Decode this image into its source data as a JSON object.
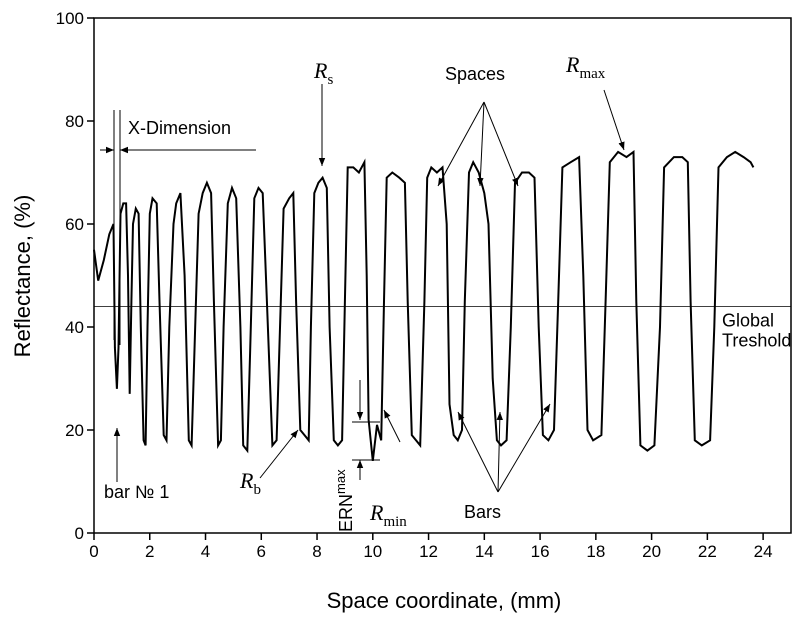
{
  "chart_data": {
    "type": "line",
    "x_label": "Space coordinate, (mm)",
    "y_label": "Reflectance, (%)",
    "xlim": [
      0,
      25
    ],
    "ylim": [
      0,
      100
    ],
    "xticks": [
      0,
      2,
      4,
      6,
      8,
      10,
      12,
      14,
      16,
      18,
      20,
      22,
      24
    ],
    "yticks": [
      0,
      20,
      40,
      60,
      80,
      100
    ],
    "color": "#000000",
    "threshold": {
      "value": 44,
      "label_lines": [
        "Global",
        "Treshold"
      ]
    },
    "annotations": [
      {
        "text": "R",
        "sub": "s"
      },
      {
        "text": "Spaces"
      },
      {
        "text": "R",
        "sub": "max"
      },
      {
        "text": "X-Dimension"
      },
      {
        "text": "bar № 1"
      },
      {
        "text": "R",
        "sub": "b"
      },
      {
        "text": "ERN",
        "sub": "max"
      },
      {
        "text": "R",
        "sub": "min"
      },
      {
        "text": "Bars"
      }
    ],
    "x": [
      0,
      0.15,
      0.35,
      0.55,
      0.7,
      0.75,
      0.82,
      0.88,
      0.95,
      1.05,
      1.15,
      1.22,
      1.28,
      1.34,
      1.4,
      1.5,
      1.6,
      1.68,
      1.78,
      1.85,
      1.92,
      2.0,
      2.1,
      2.25,
      2.35,
      2.5,
      2.6,
      2.7,
      2.85,
      2.95,
      3.1,
      3.25,
      3.4,
      3.5,
      3.6,
      3.75,
      3.9,
      4.05,
      4.2,
      4.3,
      4.45,
      4.55,
      4.65,
      4.8,
      4.95,
      5.1,
      5.25,
      5.35,
      5.5,
      5.6,
      5.75,
      5.9,
      6.05,
      6.2,
      6.4,
      6.55,
      6.7,
      6.8,
      7.0,
      7.15,
      7.25,
      7.4,
      7.55,
      7.7,
      7.78,
      7.9,
      8.05,
      8.2,
      8.35,
      8.45,
      8.6,
      8.75,
      8.9,
      9.0,
      9.1,
      9.3,
      9.5,
      9.7,
      9.78,
      9.85,
      10.0,
      10.15,
      10.3,
      10.4,
      10.5,
      10.7,
      10.95,
      11.15,
      11.25,
      11.4,
      11.55,
      11.7,
      11.85,
      11.95,
      12.1,
      12.3,
      12.5,
      12.65,
      12.75,
      12.9,
      13.05,
      13.2,
      13.3,
      13.45,
      13.6,
      13.8,
      14.0,
      14.15,
      14.3,
      14.45,
      14.6,
      14.8,
      14.95,
      15.1,
      15.35,
      15.6,
      15.8,
      15.95,
      16.1,
      16.3,
      16.5,
      16.65,
      16.8,
      17.1,
      17.4,
      17.55,
      17.7,
      17.9,
      18.2,
      18.35,
      18.5,
      18.8,
      19.1,
      19.35,
      19.45,
      19.6,
      19.85,
      20.1,
      20.3,
      20.45,
      20.8,
      21.1,
      21.3,
      21.4,
      21.55,
      21.8,
      22.1,
      22.25,
      22.4,
      22.7,
      23.0,
      23.3,
      23.55,
      23.65
    ],
    "values": [
      55,
      49,
      53,
      58,
      60,
      36,
      28,
      36,
      62,
      64,
      64,
      50,
      27,
      45,
      60,
      63,
      62,
      40,
      18,
      17,
      40,
      62,
      65,
      64,
      45,
      19,
      18,
      40,
      60,
      64,
      66,
      50,
      18,
      17,
      35,
      62,
      66,
      68,
      66,
      45,
      17,
      18,
      40,
      64,
      67,
      65,
      40,
      17,
      16,
      35,
      65,
      67,
      66,
      45,
      17,
      18,
      45,
      63,
      65,
      66,
      45,
      20,
      19,
      18,
      40,
      66,
      68,
      69,
      67,
      40,
      18,
      17,
      18,
      45,
      71,
      71,
      70,
      72,
      50,
      22,
      14,
      21,
      18,
      45,
      69,
      70,
      69,
      68,
      45,
      19,
      18,
      17,
      45,
      69,
      71,
      70,
      71,
      60,
      25,
      19,
      18,
      20,
      45,
      70,
      72,
      70,
      66,
      60,
      30,
      18,
      17,
      18,
      40,
      68,
      70,
      70,
      69,
      40,
      19,
      18,
      20,
      45,
      71,
      72,
      73,
      50,
      20,
      18,
      19,
      45,
      72,
      74,
      73,
      74,
      45,
      17,
      16,
      17,
      40,
      71,
      73,
      73,
      72,
      45,
      18,
      17,
      18,
      40,
      71,
      73,
      74,
      73,
      72,
      71
    ]
  }
}
